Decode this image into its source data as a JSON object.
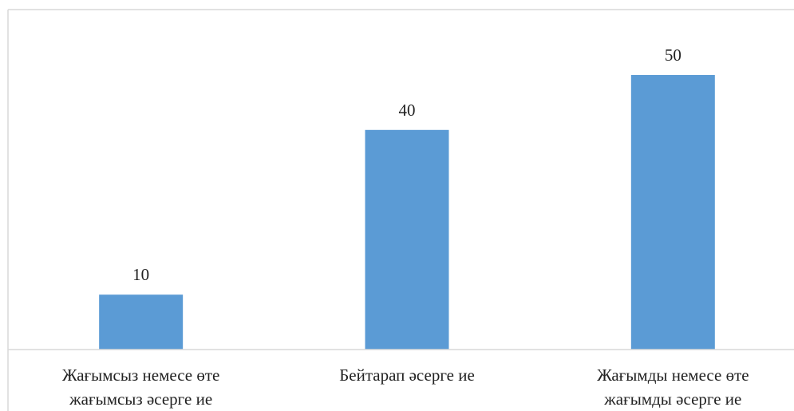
{
  "chart_data": {
    "type": "bar",
    "categories": [
      "Жағымсыз немесе өте жағымсыз әсерге ие",
      "Бейтарап әсерге ие",
      "Жағымды немесе өте жағымды әсерге ие"
    ],
    "values": [
      10,
      40,
      50
    ],
    "color": "#5b9bd5"
  }
}
